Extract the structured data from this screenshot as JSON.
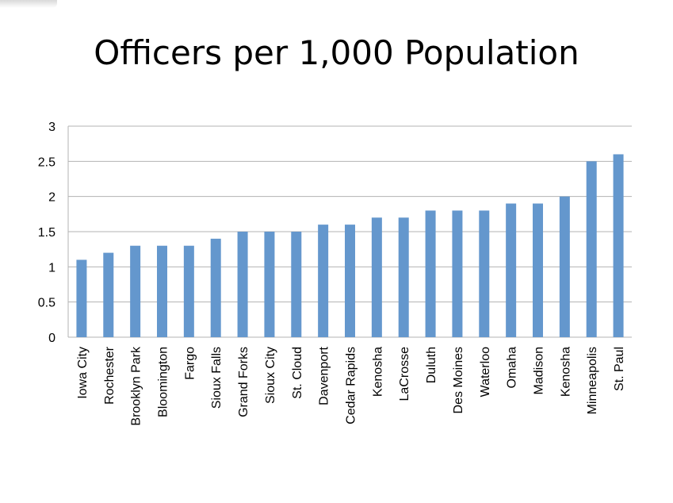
{
  "colors": {
    "bar": "#6497CD",
    "gridline": "#b3b3b3",
    "text": "#000000"
  },
  "chart_data": {
    "type": "bar",
    "title": "Officers per 1,000 Population",
    "xlabel": "",
    "ylabel": "",
    "ylim": [
      0,
      3
    ],
    "yticks": [
      "0",
      "0.5",
      "1",
      "1.5",
      "2",
      "2.5",
      "3"
    ],
    "grid": true,
    "legend": "none",
    "categories": [
      "Iowa City",
      "Rochester",
      "Brooklyn Park",
      "Bloomington",
      "Fargo",
      "Sioux Falls",
      "Grand Forks",
      "Sioux City",
      "St. Cloud",
      "Davenport",
      "Cedar Rapids",
      "Kenosha",
      "LaCrosse",
      "Duluth",
      "Des Moines",
      "Waterloo",
      "Omaha",
      "Madison",
      "Kenosha",
      "Minneapolis",
      "St. Paul"
    ],
    "values": [
      1.1,
      1.2,
      1.3,
      1.3,
      1.3,
      1.4,
      1.5,
      1.5,
      1.5,
      1.6,
      1.6,
      1.7,
      1.7,
      1.8,
      1.8,
      1.8,
      1.9,
      1.9,
      2.0,
      2.5,
      2.6
    ]
  }
}
